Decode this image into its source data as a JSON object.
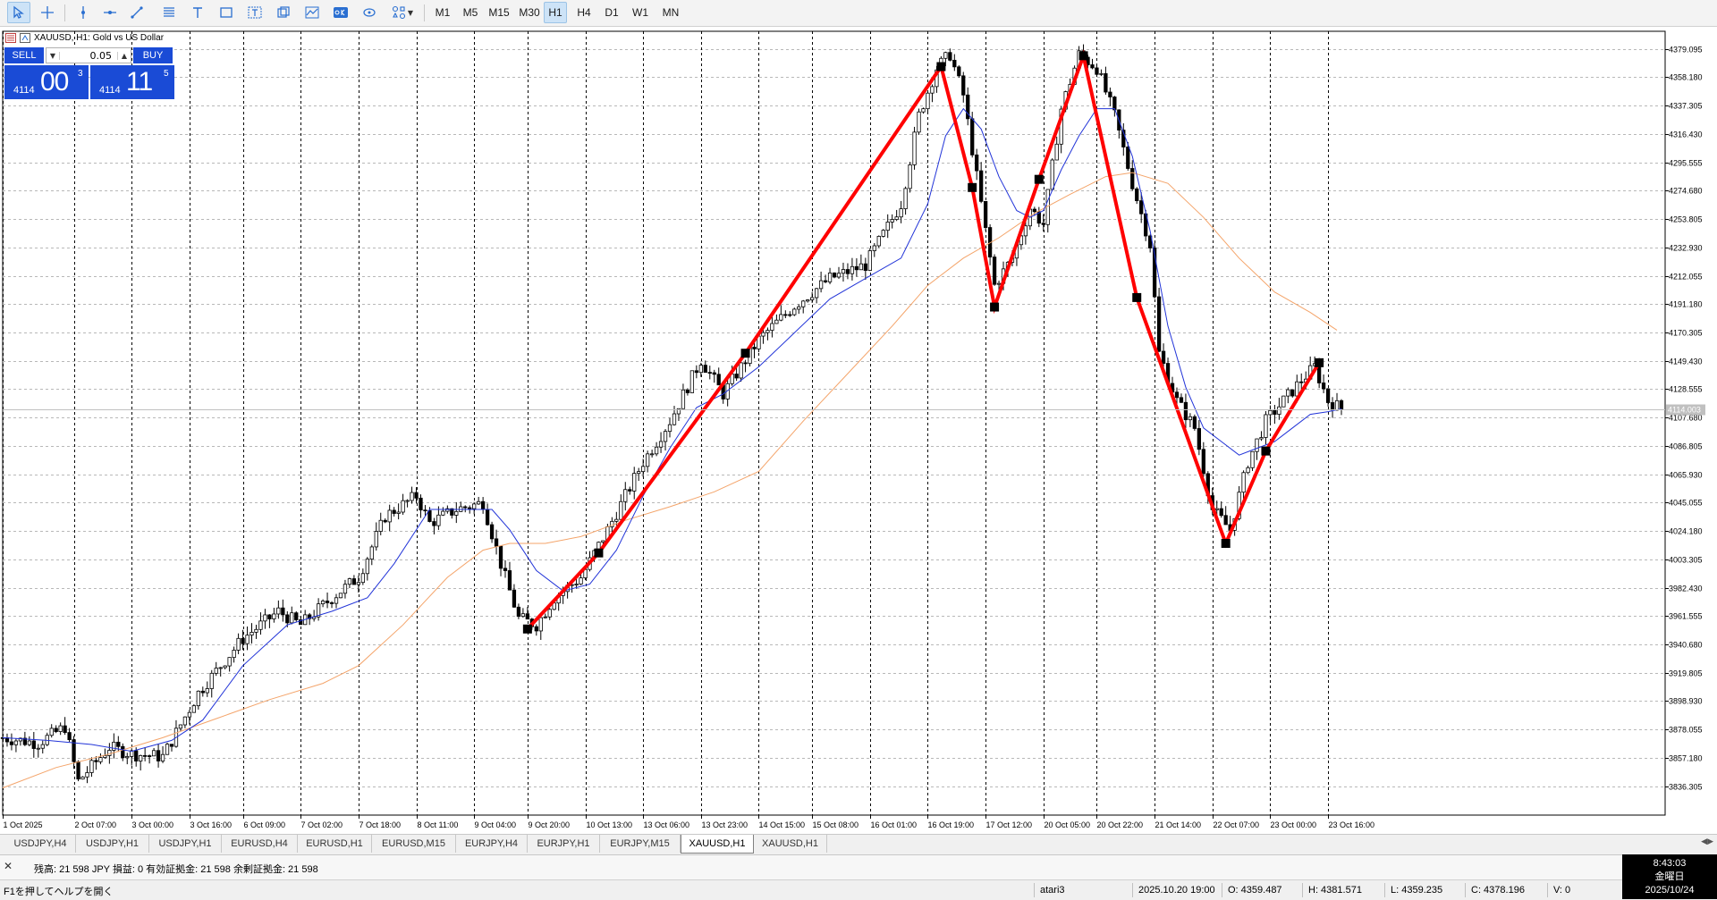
{
  "toolbar": {
    "timeframes": [
      "M1",
      "M5",
      "M15",
      "M30",
      "H1",
      "H4",
      "D1",
      "W1",
      "MN"
    ],
    "active_timeframe": "H1"
  },
  "chart_header": {
    "symbol_text": "XAUUSD, H1:  Gold vs US Dollar"
  },
  "trade_panel": {
    "sell_label": "SELL",
    "buy_label": "BUY",
    "lot": "0.05",
    "bid_small": "4114",
    "bid_big": "00",
    "bid_sup": "3",
    "ask_small": "4114",
    "ask_big": "11",
    "ask_sup": "5"
  },
  "chart_data": {
    "type": "line",
    "symbol": "XAUUSD",
    "timeframe": "H1",
    "current_price_label": "4114.003",
    "current_price": 4114.003,
    "ylim": [
      3815,
      4392
    ],
    "y_ticks": [
      4379.095,
      4358.18,
      4337.305,
      4316.43,
      4295.555,
      4274.68,
      4253.805,
      4232.93,
      4212.055,
      4191.18,
      4170.305,
      4149.43,
      4128.555,
      4107.68,
      4086.805,
      4065.93,
      4045.055,
      4024.18,
      4003.305,
      3982.43,
      3961.555,
      3940.68,
      3919.805,
      3898.93,
      3878.055,
      3857.18,
      3836.305
    ],
    "y_tick_labels": [
      "4379.095",
      "4358.180",
      "4337.305",
      "4316.430",
      "4295.555",
      "4274.680",
      "4253.805",
      "4232.930",
      "4212.055",
      "4191.180",
      "4170.305",
      "4149.430",
      "4128.555",
      "4107.680",
      "4086.805",
      "4065.930",
      "4045.055",
      "4024.180",
      "4003.305",
      "3982.430",
      "3961.555",
      "3940.680",
      "3919.805",
      "3898.930",
      "3878.055",
      "3857.180",
      "3836.305"
    ],
    "x_range": [
      0,
      301
    ],
    "x_ticks": [
      {
        "x": 0,
        "label": "1 Oct 2025"
      },
      {
        "x": 16,
        "label": "2 Oct 07:00"
      },
      {
        "x": 29,
        "label": "3 Oct 00:00"
      },
      {
        "x": 42,
        "label": "3 Oct 16:00"
      },
      {
        "x": 54,
        "label": "6 Oct 09:00"
      },
      {
        "x": 67,
        "label": "7 Oct 02:00"
      },
      {
        "x": 80,
        "label": "7 Oct 18:00"
      },
      {
        "x": 93,
        "label": "8 Oct 11:00"
      },
      {
        "x": 106,
        "label": "9 Oct 04:00"
      },
      {
        "x": 118,
        "label": "9 Oct 20:00"
      },
      {
        "x": 131,
        "label": "10 Oct 13:00"
      },
      {
        "x": 144,
        "label": "13 Oct 06:00"
      },
      {
        "x": 157,
        "label": "13 Oct 23:00"
      },
      {
        "x": 170,
        "label": "14 Oct 15:00"
      },
      {
        "x": 182,
        "label": "15 Oct 08:00"
      },
      {
        "x": 195,
        "label": "16 Oct 01:00"
      },
      {
        "x": 208,
        "label": "16 Oct 19:00"
      },
      {
        "x": 221,
        "label": "17 Oct 12:00"
      },
      {
        "x": 234,
        "label": "20 Oct 05:00"
      },
      {
        "x": 246,
        "label": "20 Oct 22:00"
      },
      {
        "x": 259,
        "label": "21 Oct 14:00"
      },
      {
        "x": 272,
        "label": "22 Oct 07:00"
      },
      {
        "x": 285,
        "label": "23 Oct 00:00"
      },
      {
        "x": 298,
        "label": "23 Oct 16:00"
      }
    ],
    "price_path": [
      [
        0,
        3872
      ],
      [
        8,
        3868
      ],
      [
        14,
        3880
      ],
      [
        17,
        3840
      ],
      [
        24,
        3865
      ],
      [
        29,
        3860
      ],
      [
        36,
        3858
      ],
      [
        44,
        3905
      ],
      [
        54,
        3945
      ],
      [
        62,
        3965
      ],
      [
        67,
        3955
      ],
      [
        74,
        3975
      ],
      [
        80,
        3990
      ],
      [
        86,
        4035
      ],
      [
        93,
        4050
      ],
      [
        96,
        4030
      ],
      [
        102,
        4040
      ],
      [
        108,
        4045
      ],
      [
        112,
        4000
      ],
      [
        116,
        3960
      ],
      [
        120,
        3955
      ],
      [
        124,
        3975
      ],
      [
        130,
        3990
      ],
      [
        136,
        4025
      ],
      [
        144,
        4075
      ],
      [
        150,
        4105
      ],
      [
        157,
        4150
      ],
      [
        162,
        4125
      ],
      [
        170,
        4165
      ],
      [
        178,
        4190
      ],
      [
        186,
        4210
      ],
      [
        194,
        4220
      ],
      [
        202,
        4265
      ],
      [
        206,
        4330
      ],
      [
        210,
        4365
      ],
      [
        213,
        4375
      ],
      [
        216,
        4345
      ],
      [
        219,
        4285
      ],
      [
        223,
        4205
      ],
      [
        227,
        4225
      ],
      [
        231,
        4262
      ],
      [
        234,
        4250
      ],
      [
        238,
        4335
      ],
      [
        242,
        4375
      ],
      [
        246,
        4365
      ],
      [
        250,
        4330
      ],
      [
        254,
        4280
      ],
      [
        258,
        4235
      ],
      [
        260,
        4155
      ],
      [
        264,
        4120
      ],
      [
        268,
        4100
      ],
      [
        272,
        4040
      ],
      [
        276,
        4025
      ],
      [
        280,
        4075
      ],
      [
        284,
        4105
      ],
      [
        288,
        4120
      ],
      [
        292,
        4135
      ],
      [
        295,
        4145
      ],
      [
        298,
        4120
      ],
      [
        301,
        4114
      ]
    ],
    "ma_fast_path": [
      [
        0,
        3872
      ],
      [
        10,
        3870
      ],
      [
        20,
        3867
      ],
      [
        29,
        3862
      ],
      [
        38,
        3870
      ],
      [
        45,
        3885
      ],
      [
        54,
        3925
      ],
      [
        64,
        3955
      ],
      [
        74,
        3965
      ],
      [
        82,
        3975
      ],
      [
        88,
        4000
      ],
      [
        96,
        4040
      ],
      [
        104,
        4040
      ],
      [
        110,
        4040
      ],
      [
        114,
        4025
      ],
      [
        120,
        3995
      ],
      [
        126,
        3980
      ],
      [
        132,
        3985
      ],
      [
        138,
        4010
      ],
      [
        144,
        4050
      ],
      [
        150,
        4085
      ],
      [
        156,
        4115
      ],
      [
        162,
        4125
      ],
      [
        170,
        4145
      ],
      [
        178,
        4170
      ],
      [
        186,
        4195
      ],
      [
        194,
        4210
      ],
      [
        202,
        4225
      ],
      [
        208,
        4265
      ],
      [
        212,
        4315
      ],
      [
        216,
        4335
      ],
      [
        220,
        4320
      ],
      [
        224,
        4285
      ],
      [
        228,
        4260
      ],
      [
        231,
        4255
      ],
      [
        234,
        4260
      ],
      [
        238,
        4290
      ],
      [
        242,
        4315
      ],
      [
        246,
        4335
      ],
      [
        250,
        4335
      ],
      [
        254,
        4300
      ],
      [
        258,
        4245
      ],
      [
        262,
        4175
      ],
      [
        266,
        4130
      ],
      [
        270,
        4100
      ],
      [
        274,
        4090
      ],
      [
        278,
        4080
      ],
      [
        282,
        4085
      ],
      [
        286,
        4090
      ],
      [
        290,
        4100
      ],
      [
        294,
        4110
      ],
      [
        298,
        4112
      ],
      [
        301,
        4114
      ]
    ],
    "ma_slow_path": [
      [
        0,
        3835
      ],
      [
        12,
        3850
      ],
      [
        24,
        3860
      ],
      [
        36,
        3872
      ],
      [
        48,
        3886
      ],
      [
        60,
        3900
      ],
      [
        72,
        3912
      ],
      [
        80,
        3925
      ],
      [
        90,
        3955
      ],
      [
        100,
        3990
      ],
      [
        108,
        4010
      ],
      [
        114,
        4015
      ],
      [
        122,
        4015
      ],
      [
        130,
        4020
      ],
      [
        140,
        4032
      ],
      [
        150,
        4042
      ],
      [
        160,
        4053
      ],
      [
        170,
        4068
      ],
      [
        180,
        4105
      ],
      [
        190,
        4140
      ],
      [
        200,
        4175
      ],
      [
        208,
        4205
      ],
      [
        216,
        4225
      ],
      [
        224,
        4240
      ],
      [
        232,
        4258
      ],
      [
        240,
        4272
      ],
      [
        248,
        4285
      ],
      [
        254,
        4288
      ],
      [
        262,
        4280
      ],
      [
        270,
        4255
      ],
      [
        278,
        4225
      ],
      [
        286,
        4200
      ],
      [
        294,
        4185
      ],
      [
        300,
        4172
      ]
    ],
    "zigzag_points": [
      [
        118,
        3952
      ],
      [
        134,
        4008
      ],
      [
        167,
        4155
      ],
      [
        211,
        4366
      ],
      [
        218,
        4277
      ],
      [
        223,
        4189
      ],
      [
        233,
        4283
      ],
      [
        243,
        4374
      ],
      [
        255,
        4196
      ],
      [
        275,
        4015
      ],
      [
        284,
        4083
      ],
      [
        296,
        4148
      ]
    ],
    "current_price_line": 4114.003
  },
  "colors": {
    "candle": "#000000",
    "ma_fast": "#2234d8",
    "ma_slow": "#f4a46a",
    "zigzag": "#ff0000",
    "price_box": "#c0c0c0",
    "trade_panel": "#1a4bd6"
  },
  "tabs": [
    "USDJPY,H4",
    "USDJPY,H1",
    "USDJPY,H1",
    "EURUSD,H4",
    "EURUSD,H1",
    "EURUSD,M15",
    "EURJPY,H4",
    "EURJPY,H1",
    "EURJPY,M15",
    "XAUUSD,H1",
    "XAUUSD,H1"
  ],
  "active_tab_index": 9,
  "account_text": "残高: 21 598 JPY  損益: 0  有効証拠金: 21 598  余剰証拠金: 21 598",
  "status": {
    "help": "F1を押してヘルプを開く",
    "profile": "atari3",
    "datetime": "2025.10.20 19:00",
    "open": "O: 4359.487",
    "high": "H: 4381.571",
    "low": "L: 4359.235",
    "close": "C: 4378.196",
    "volume": "V: 0"
  },
  "clock": {
    "time": "8:43:03",
    "weekday": "金曜日",
    "date": "2025/10/24"
  }
}
